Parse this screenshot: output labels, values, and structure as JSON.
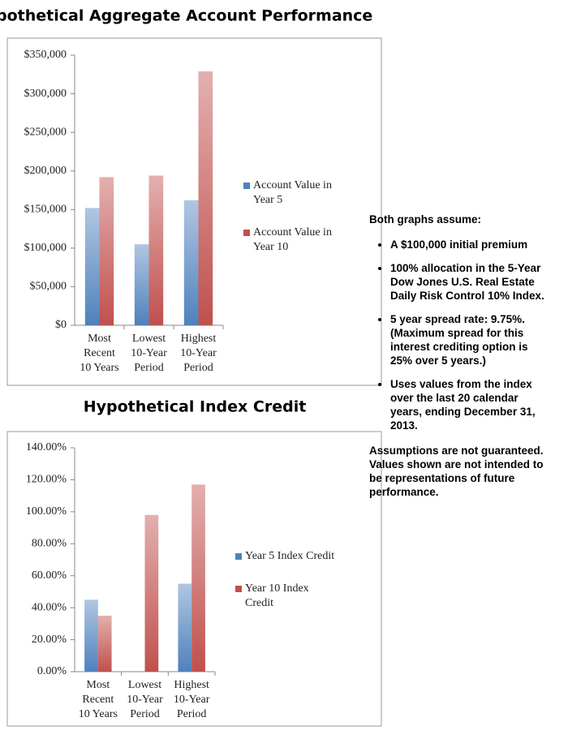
{
  "chart_data": [
    {
      "type": "bar",
      "title": "Hypothetical Aggregate Account Performance",
      "categories": [
        [
          "Most",
          "Recent",
          "10 Years"
        ],
        [
          "Lowest",
          "10-Year",
          "Period"
        ],
        [
          "Highest",
          "10-Year",
          "Period"
        ]
      ],
      "series": [
        {
          "name": "Account Value in Year 5",
          "color": "#4f81bd",
          "values": [
            152000,
            105000,
            162000
          ]
        },
        {
          "name": "Account Value in Year 10",
          "color": "#c0504d",
          "values": [
            192000,
            194000,
            329000
          ]
        }
      ],
      "ylim": [
        0,
        350000
      ],
      "yticks": [
        {
          "value": 0,
          "label": "$0"
        },
        {
          "value": 50000,
          "label": "$50,000"
        },
        {
          "value": 100000,
          "label": "$100,000"
        },
        {
          "value": 150000,
          "label": "$150,000"
        },
        {
          "value": 200000,
          "label": "$200,000"
        },
        {
          "value": 250000,
          "label": "$250,000"
        },
        {
          "value": 300000,
          "label": "$300,000"
        },
        {
          "value": 350000,
          "label": "$350,000"
        }
      ],
      "grid": false,
      "legend": "right"
    },
    {
      "type": "bar",
      "title": "Hypothetical Index Credit",
      "categories": [
        [
          "Most",
          "Recent",
          "10 Years"
        ],
        [
          "Lowest",
          "10-Year",
          "Period"
        ],
        [
          "Highest",
          "10-Year",
          "Period"
        ]
      ],
      "series": [
        {
          "name": "Year 5 Index Credit",
          "color": "#4f81bd",
          "values": [
            45,
            0,
            55
          ]
        },
        {
          "name": "Year 10 Index Credit",
          "color": "#c0504d",
          "values": [
            35,
            98,
            117
          ]
        }
      ],
      "ylim": [
        0,
        140
      ],
      "yticks": [
        {
          "value": 0,
          "label": "0.00%"
        },
        {
          "value": 20,
          "label": "20.00%"
        },
        {
          "value": 40,
          "label": "40.00%"
        },
        {
          "value": 60,
          "label": "60.00%"
        },
        {
          "value": 80,
          "label": "80.00%"
        },
        {
          "value": 100,
          "label": "100.00%"
        },
        {
          "value": 120,
          "label": "120.00%"
        },
        {
          "value": 140,
          "label": "140.00%"
        }
      ],
      "grid": false,
      "legend": "right"
    }
  ],
  "notes": {
    "heading": "Both graphs assume:",
    "bullets": [
      "A $100,000 initial premium",
      "100% allocation in the 5-Year Dow Jones U.S. Real Estate Daily Risk Control 10% Index.",
      "5 year spread rate: 9.75%. (Maximum spread for this interest crediting option is 25% over 5 years.)",
      "Uses values from the index over the last 20 calendar years, ending December 31, 2013."
    ],
    "footer": "Assumptions are not guaranteed. Values shown are not intended to be representations of future performance."
  }
}
